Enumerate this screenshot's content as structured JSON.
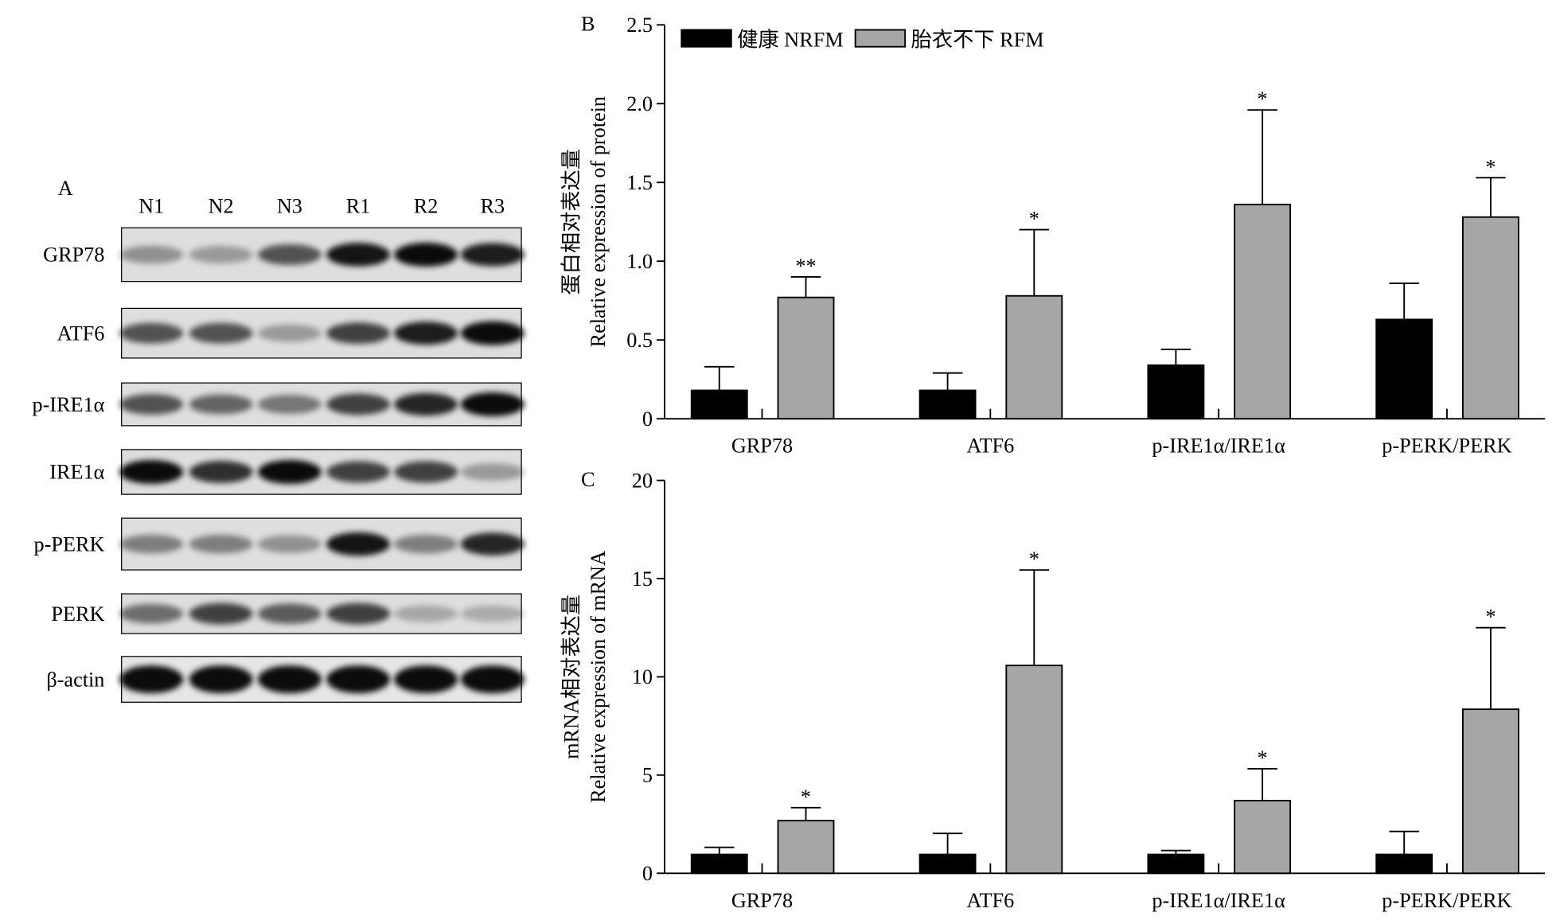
{
  "panel_a": {
    "label": "A",
    "lanes": [
      "N1",
      "N2",
      "N3",
      "R1",
      "R2",
      "R3"
    ],
    "proteins": [
      "GRP78",
      "ATF6",
      "p-IRE1α",
      "IRE1α",
      "p-PERK",
      "PERK",
      "β-actin"
    ]
  },
  "chart_data": [
    {
      "type": "bar",
      "panel_label": "B",
      "ylabel": [
        "蛋白相对表达量",
        "Relative expression of protein"
      ],
      "categories": [
        "GRP78",
        "ATF6",
        "p-IRE1α/IRE1α",
        "p-PERK/PERK"
      ],
      "series": [
        {
          "name": "健康 NRFM",
          "color": "#000000",
          "values": [
            0.18,
            0.18,
            0.34,
            0.63
          ],
          "errors": [
            0.15,
            0.11,
            0.1,
            0.23
          ]
        },
        {
          "name": "胎衣不下 RFM",
          "color": "#a6a6a6",
          "values": [
            0.77,
            0.78,
            1.36,
            1.28
          ],
          "errors": [
            0.13,
            0.42,
            0.6,
            0.25
          ]
        }
      ],
      "annotations": [
        "**",
        "*",
        "*",
        "*"
      ],
      "ylim": [
        0,
        2.5
      ],
      "yticks": [
        0,
        0.5,
        {
          "value": 1,
          "label": "1.0"
        },
        1.5,
        {
          "value": 2,
          "label": "2.0"
        },
        2.5
      ],
      "legend": "top-left"
    },
    {
      "type": "bar",
      "panel_label": "C",
      "ylabel": [
        "mRNA相对表达量",
        "Relative expression of mRNA"
      ],
      "categories": [
        "GRP78",
        "ATF6",
        "p-IRE1α/IRE1α",
        "p-PERK/PERK"
      ],
      "series": [
        {
          "color": "#000000",
          "values": [
            0.96,
            0.96,
            0.96,
            0.96
          ],
          "errors": [
            0.36,
            1.07,
            0.2,
            1.17
          ]
        },
        {
          "color": "#a6a6a6",
          "values": [
            2.68,
            10.58,
            3.7,
            8.35
          ],
          "errors": [
            0.66,
            4.86,
            1.62,
            4.15
          ]
        }
      ],
      "annotations": [
        "*",
        "*",
        "*",
        "*"
      ],
      "ylim": [
        0,
        20
      ],
      "yticks": [
        0,
        5,
        10,
        15,
        20
      ]
    }
  ]
}
